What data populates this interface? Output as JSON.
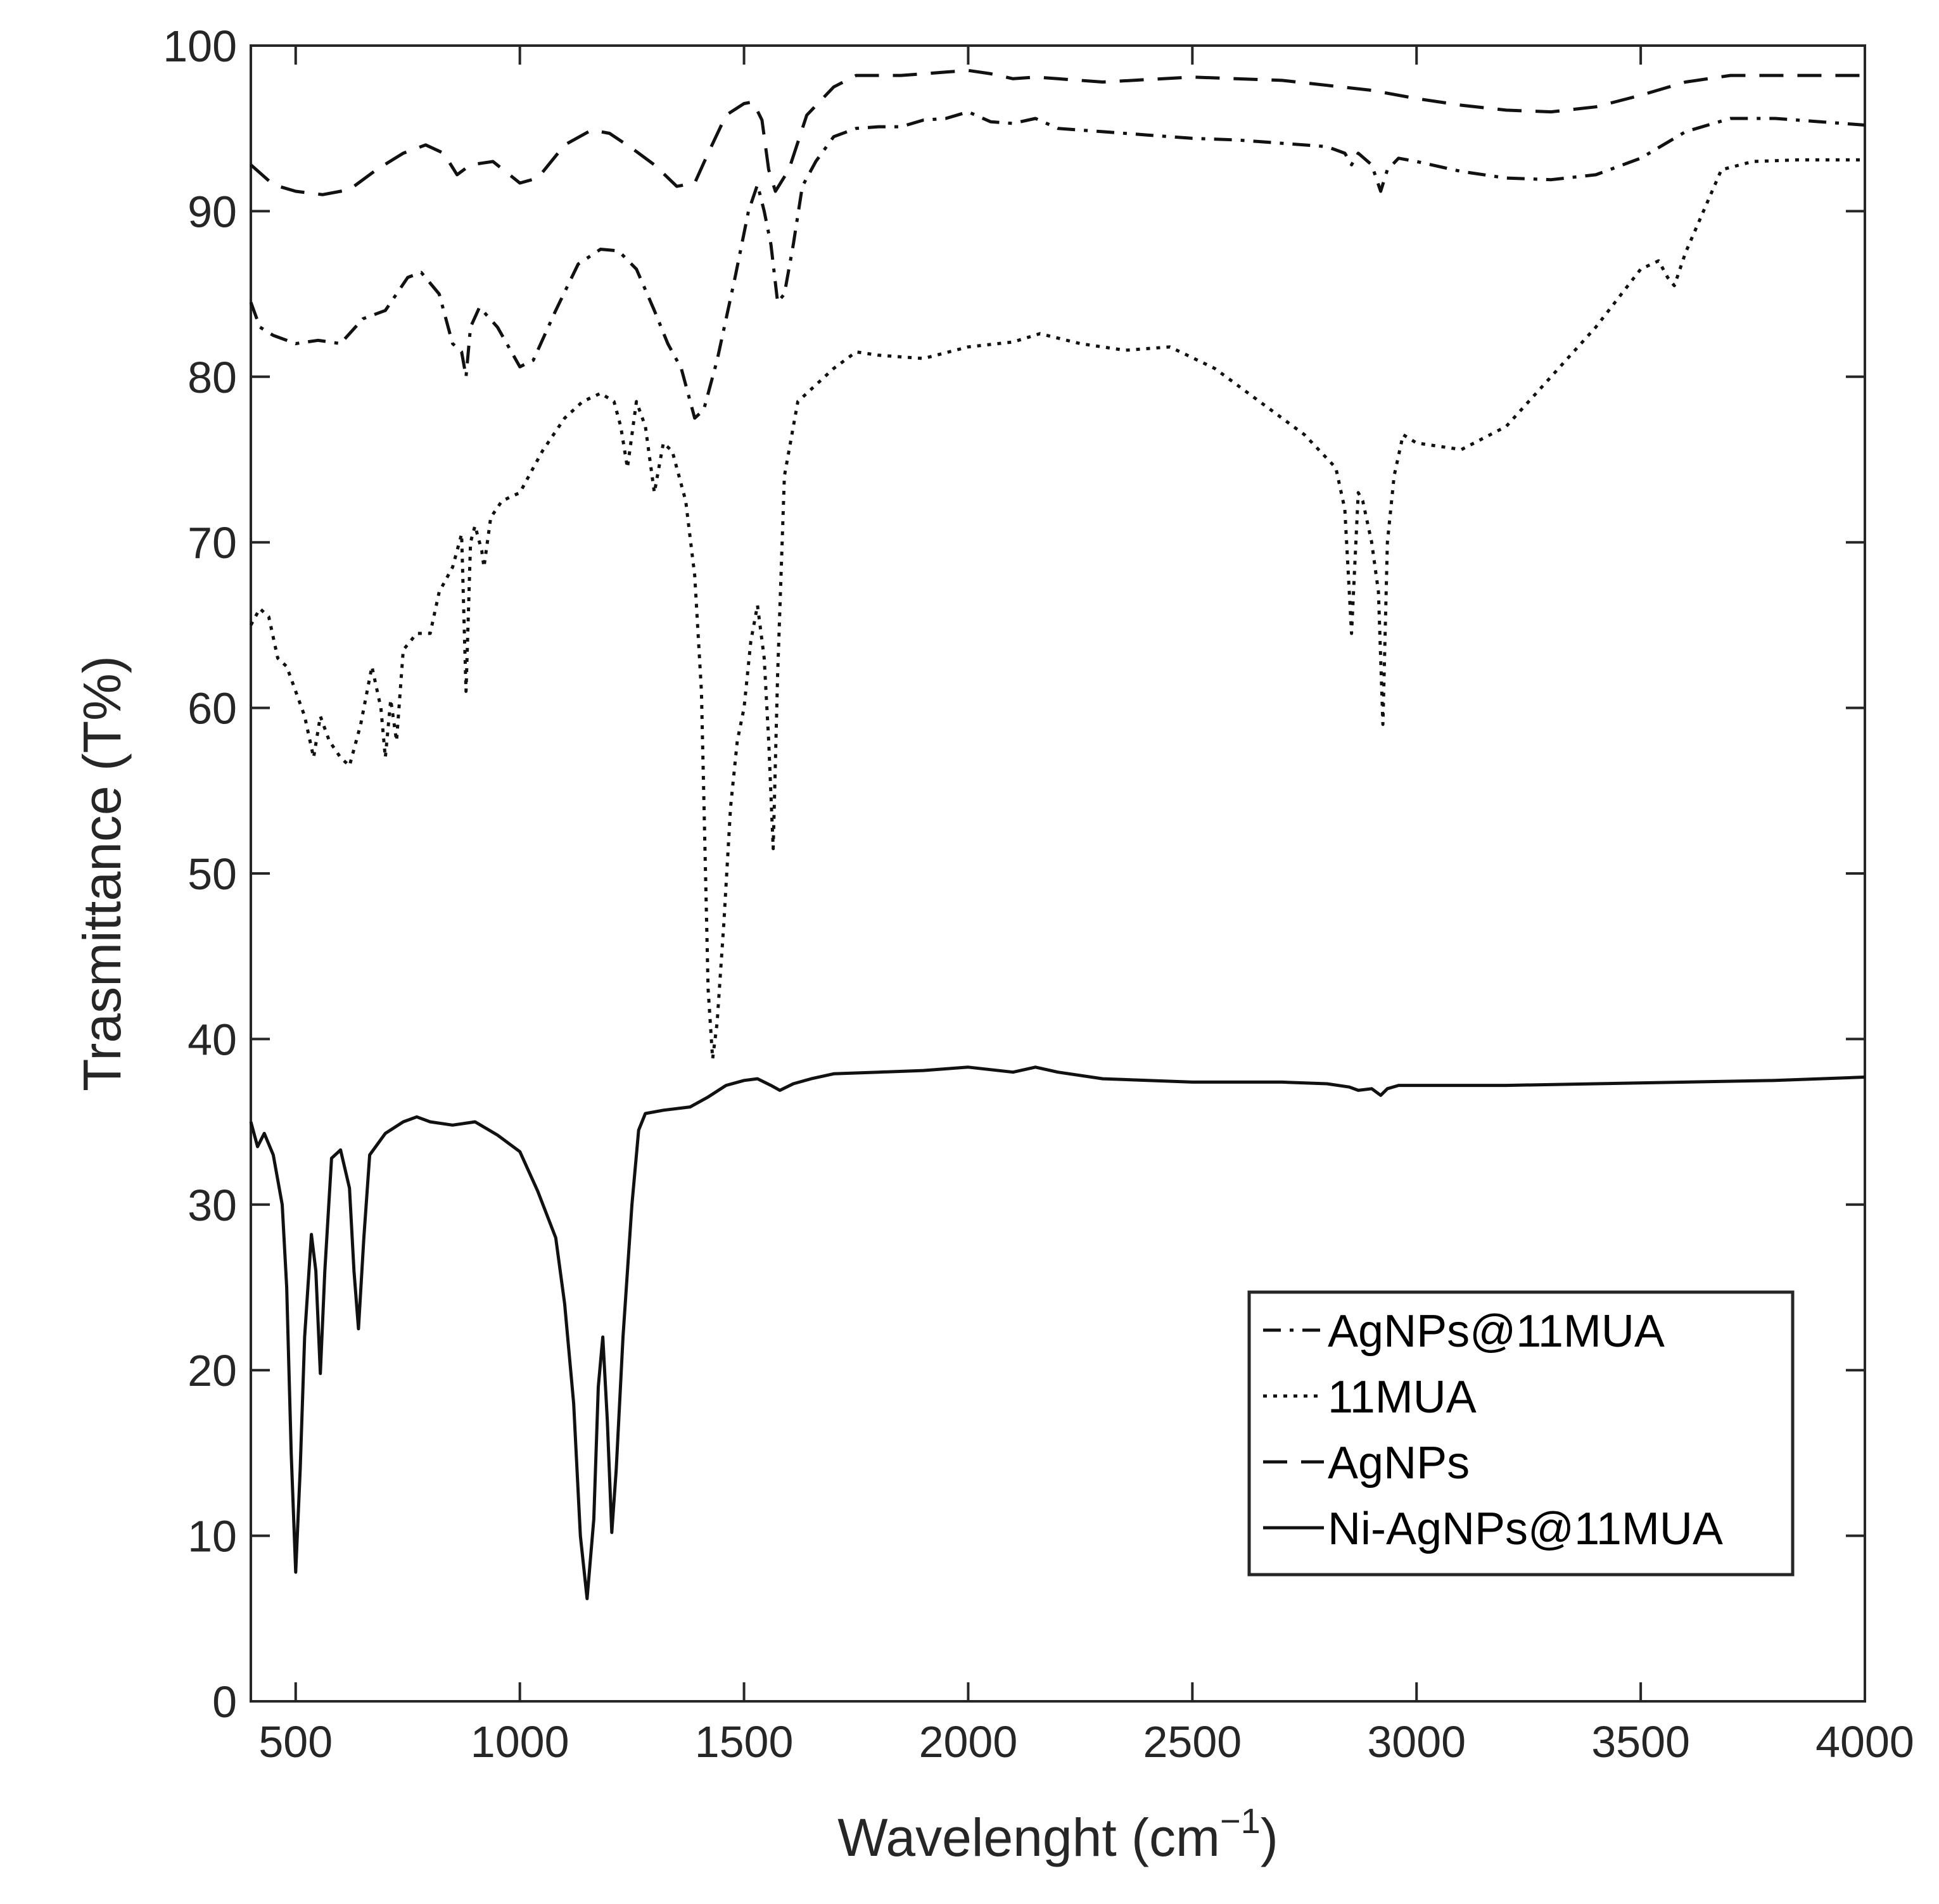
{
  "chart_data": {
    "type": "line",
    "title": "",
    "xlabel": "Wavelenght (cm",
    "xlabel_superscript": "−1",
    "xlabel_close": ")",
    "ylabel": "Trasmittance (T%)",
    "xlim": [
      400,
      4000
    ],
    "ylim": [
      0,
      100
    ],
    "xticks": [
      500,
      1000,
      1500,
      2000,
      2500,
      3000,
      3500,
      4000
    ],
    "yticks": [
      0,
      10,
      20,
      30,
      40,
      50,
      60,
      70,
      80,
      90,
      100
    ],
    "grid": false,
    "legend_position": "bottom-right",
    "series": [
      {
        "name": "AgNPs@11MUA",
        "style": "dashdot",
        "points": [
          [
            400,
            84.5
          ],
          [
            420,
            83
          ],
          [
            450,
            82.5
          ],
          [
            500,
            82
          ],
          [
            550,
            82.2
          ],
          [
            600,
            82
          ],
          [
            650,
            83.5
          ],
          [
            700,
            84
          ],
          [
            750,
            86
          ],
          [
            780,
            86.3
          ],
          [
            820,
            85
          ],
          [
            850,
            82
          ],
          [
            870,
            81.5
          ],
          [
            880,
            80
          ],
          [
            890,
            83
          ],
          [
            910,
            84.2
          ],
          [
            950,
            83
          ],
          [
            1000,
            80.6
          ],
          [
            1030,
            81
          ],
          [
            1080,
            84
          ],
          [
            1130,
            86.8
          ],
          [
            1180,
            87.7
          ],
          [
            1220,
            87.6
          ],
          [
            1260,
            86.5
          ],
          [
            1300,
            84
          ],
          [
            1330,
            82
          ],
          [
            1360,
            80.5
          ],
          [
            1390,
            77.5
          ],
          [
            1410,
            78
          ],
          [
            1440,
            81
          ],
          [
            1480,
            86
          ],
          [
            1510,
            90
          ],
          [
            1530,
            91.6
          ],
          [
            1545,
            90
          ],
          [
            1560,
            88
          ],
          [
            1575,
            84.5
          ],
          [
            1590,
            85
          ],
          [
            1610,
            88
          ],
          [
            1630,
            91.5
          ],
          [
            1660,
            93
          ],
          [
            1700,
            94.5
          ],
          [
            1750,
            95
          ],
          [
            1800,
            95.1
          ],
          [
            1850,
            95.1
          ],
          [
            1900,
            95.5
          ],
          [
            1950,
            95.6
          ],
          [
            2000,
            96
          ],
          [
            2050,
            95.4
          ],
          [
            2100,
            95.3
          ],
          [
            2150,
            95.6
          ],
          [
            2200,
            95
          ],
          [
            2300,
            94.8
          ],
          [
            2400,
            94.6
          ],
          [
            2500,
            94.4
          ],
          [
            2600,
            94.3
          ],
          [
            2700,
            94.1
          ],
          [
            2800,
            93.9
          ],
          [
            2840,
            93.5
          ],
          [
            2855,
            92.8
          ],
          [
            2870,
            93.5
          ],
          [
            2900,
            92.8
          ],
          [
            2920,
            91.2
          ],
          [
            2935,
            92.5
          ],
          [
            2960,
            93.2
          ],
          [
            3000,
            93
          ],
          [
            3100,
            92.4
          ],
          [
            3200,
            92
          ],
          [
            3300,
            91.9
          ],
          [
            3400,
            92.2
          ],
          [
            3500,
            93.2
          ],
          [
            3600,
            94.8
          ],
          [
            3700,
            95.6
          ],
          [
            3800,
            95.6
          ],
          [
            3900,
            95.4
          ],
          [
            4000,
            95.2
          ]
        ]
      },
      {
        "name": "11MUA",
        "style": "dotted",
        "points": [
          [
            400,
            65
          ],
          [
            420,
            66
          ],
          [
            440,
            65.5
          ],
          [
            460,
            63
          ],
          [
            480,
            62.5
          ],
          [
            500,
            61
          ],
          [
            520,
            59.5
          ],
          [
            540,
            57
          ],
          [
            555,
            59.5
          ],
          [
            575,
            58
          ],
          [
            600,
            57
          ],
          [
            620,
            56.5
          ],
          [
            645,
            59
          ],
          [
            670,
            62.5
          ],
          [
            690,
            60
          ],
          [
            700,
            57
          ],
          [
            712,
            60.5
          ],
          [
            725,
            58
          ],
          [
            740,
            63.5
          ],
          [
            770,
            64.5
          ],
          [
            800,
            64.5
          ],
          [
            820,
            67
          ],
          [
            850,
            68.5
          ],
          [
            870,
            70.5
          ],
          [
            880,
            61
          ],
          [
            890,
            70
          ],
          [
            900,
            71
          ],
          [
            915,
            69.5
          ],
          [
            920,
            68.5
          ],
          [
            935,
            71.5
          ],
          [
            960,
            72.5
          ],
          [
            1000,
            73
          ],
          [
            1050,
            75.5
          ],
          [
            1100,
            77.5
          ],
          [
            1140,
            78.5
          ],
          [
            1180,
            79
          ],
          [
            1210,
            78.5
          ],
          [
            1225,
            77
          ],
          [
            1240,
            74.5
          ],
          [
            1260,
            78.5
          ],
          [
            1280,
            77
          ],
          [
            1300,
            73
          ],
          [
            1320,
            76
          ],
          [
            1340,
            75.5
          ],
          [
            1370,
            72.5
          ],
          [
            1390,
            68
          ],
          [
            1405,
            61
          ],
          [
            1420,
            43
          ],
          [
            1430,
            38.8
          ],
          [
            1440,
            41
          ],
          [
            1455,
            47
          ],
          [
            1470,
            54
          ],
          [
            1485,
            58
          ],
          [
            1500,
            60
          ],
          [
            1515,
            64
          ],
          [
            1530,
            66.2
          ],
          [
            1545,
            63
          ],
          [
            1555,
            58
          ],
          [
            1565,
            51.5
          ],
          [
            1575,
            62
          ],
          [
            1590,
            74
          ],
          [
            1620,
            78.5
          ],
          [
            1700,
            80.5
          ],
          [
            1750,
            81.5
          ],
          [
            1800,
            81.3
          ],
          [
            1900,
            81.1
          ],
          [
            2000,
            81.8
          ],
          [
            2100,
            82.1
          ],
          [
            2160,
            82.6
          ],
          [
            2250,
            82
          ],
          [
            2350,
            81.6
          ],
          [
            2450,
            81.8
          ],
          [
            2550,
            80.5
          ],
          [
            2650,
            78.5
          ],
          [
            2750,
            76.5
          ],
          [
            2820,
            74.5
          ],
          [
            2840,
            72
          ],
          [
            2855,
            64.5
          ],
          [
            2870,
            73
          ],
          [
            2880,
            72.5
          ],
          [
            2900,
            70
          ],
          [
            2915,
            67
          ],
          [
            2925,
            59
          ],
          [
            2935,
            70
          ],
          [
            2950,
            74
          ],
          [
            2970,
            76.5
          ],
          [
            3000,
            76
          ],
          [
            3100,
            75.6
          ],
          [
            3200,
            77
          ],
          [
            3300,
            80
          ],
          [
            3400,
            83
          ],
          [
            3500,
            86.5
          ],
          [
            3540,
            87
          ],
          [
            3560,
            86
          ],
          [
            3575,
            85.5
          ],
          [
            3600,
            87.5
          ],
          [
            3640,
            90
          ],
          [
            3680,
            92.5
          ],
          [
            3750,
            93
          ],
          [
            3850,
            93.1
          ],
          [
            4000,
            93.1
          ]
        ]
      },
      {
        "name": "AgNPs",
        "style": "dashed",
        "points": [
          [
            400,
            92.8
          ],
          [
            450,
            91.6
          ],
          [
            500,
            91.2
          ],
          [
            560,
            91
          ],
          [
            620,
            91.3
          ],
          [
            680,
            92.5
          ],
          [
            740,
            93.5
          ],
          [
            790,
            94
          ],
          [
            830,
            93.5
          ],
          [
            860,
            92.2
          ],
          [
            890,
            92.8
          ],
          [
            940,
            93
          ],
          [
            1000,
            91.7
          ],
          [
            1040,
            92
          ],
          [
            1100,
            94
          ],
          [
            1160,
            94.9
          ],
          [
            1200,
            94.7
          ],
          [
            1250,
            93.8
          ],
          [
            1300,
            92.8
          ],
          [
            1350,
            91.5
          ],
          [
            1390,
            91.7
          ],
          [
            1420,
            93.5
          ],
          [
            1460,
            95.8
          ],
          [
            1500,
            96.5
          ],
          [
            1520,
            96.6
          ],
          [
            1540,
            95.5
          ],
          [
            1555,
            92.5
          ],
          [
            1570,
            91.2
          ],
          [
            1600,
            92.5
          ],
          [
            1640,
            95.8
          ],
          [
            1700,
            97.5
          ],
          [
            1750,
            98.2
          ],
          [
            1850,
            98.2
          ],
          [
            1950,
            98.4
          ],
          [
            2000,
            98.5
          ],
          [
            2050,
            98.3
          ],
          [
            2100,
            98
          ],
          [
            2150,
            98.1
          ],
          [
            2200,
            98
          ],
          [
            2300,
            97.8
          ],
          [
            2500,
            98.1
          ],
          [
            2700,
            97.9
          ],
          [
            2800,
            97.6
          ],
          [
            2900,
            97.3
          ],
          [
            3000,
            96.8
          ],
          [
            3100,
            96.4
          ],
          [
            3200,
            96.1
          ],
          [
            3300,
            96
          ],
          [
            3400,
            96.3
          ],
          [
            3500,
            97
          ],
          [
            3600,
            97.8
          ],
          [
            3700,
            98.2
          ],
          [
            3800,
            98.2
          ],
          [
            4000,
            98.2
          ]
        ]
      },
      {
        "name": "Ni-AgNPs@11MUA",
        "style": "solid",
        "points": [
          [
            400,
            35
          ],
          [
            415,
            33.5
          ],
          [
            430,
            34.3
          ],
          [
            450,
            33
          ],
          [
            470,
            30
          ],
          [
            480,
            25
          ],
          [
            490,
            15
          ],
          [
            500,
            7.8
          ],
          [
            510,
            14
          ],
          [
            520,
            22
          ],
          [
            535,
            28.2
          ],
          [
            545,
            26
          ],
          [
            555,
            19.8
          ],
          [
            565,
            26
          ],
          [
            580,
            32.8
          ],
          [
            600,
            33.3
          ],
          [
            620,
            31
          ],
          [
            630,
            26
          ],
          [
            640,
            22.5
          ],
          [
            652,
            28
          ],
          [
            665,
            33
          ],
          [
            700,
            34.3
          ],
          [
            740,
            35
          ],
          [
            770,
            35.3
          ],
          [
            800,
            35
          ],
          [
            850,
            34.8
          ],
          [
            900,
            35
          ],
          [
            950,
            34.2
          ],
          [
            1000,
            33.2
          ],
          [
            1040,
            30.8
          ],
          [
            1080,
            28
          ],
          [
            1100,
            24
          ],
          [
            1120,
            18
          ],
          [
            1135,
            10
          ],
          [
            1150,
            6.2
          ],
          [
            1165,
            11
          ],
          [
            1175,
            19
          ],
          [
            1185,
            22
          ],
          [
            1195,
            17
          ],
          [
            1205,
            10.2
          ],
          [
            1215,
            14
          ],
          [
            1230,
            22
          ],
          [
            1250,
            30
          ],
          [
            1265,
            34.5
          ],
          [
            1280,
            35.5
          ],
          [
            1320,
            35.7
          ],
          [
            1380,
            35.9
          ],
          [
            1420,
            36.5
          ],
          [
            1460,
            37.2
          ],
          [
            1500,
            37.5
          ],
          [
            1530,
            37.6
          ],
          [
            1560,
            37.2
          ],
          [
            1580,
            36.9
          ],
          [
            1610,
            37.3
          ],
          [
            1650,
            37.6
          ],
          [
            1700,
            37.9
          ],
          [
            1800,
            38
          ],
          [
            1900,
            38.1
          ],
          [
            2000,
            38.3
          ],
          [
            2100,
            38
          ],
          [
            2150,
            38.3
          ],
          [
            2200,
            38
          ],
          [
            2300,
            37.6
          ],
          [
            2400,
            37.5
          ],
          [
            2500,
            37.4
          ],
          [
            2600,
            37.4
          ],
          [
            2700,
            37.4
          ],
          [
            2800,
            37.3
          ],
          [
            2850,
            37.1
          ],
          [
            2870,
            36.9
          ],
          [
            2900,
            37
          ],
          [
            2920,
            36.6
          ],
          [
            2935,
            37
          ],
          [
            2960,
            37.2
          ],
          [
            3000,
            37.2
          ],
          [
            3200,
            37.2
          ],
          [
            3400,
            37.3
          ],
          [
            3600,
            37.4
          ],
          [
            3800,
            37.5
          ],
          [
            4000,
            37.7
          ]
        ]
      }
    ]
  }
}
